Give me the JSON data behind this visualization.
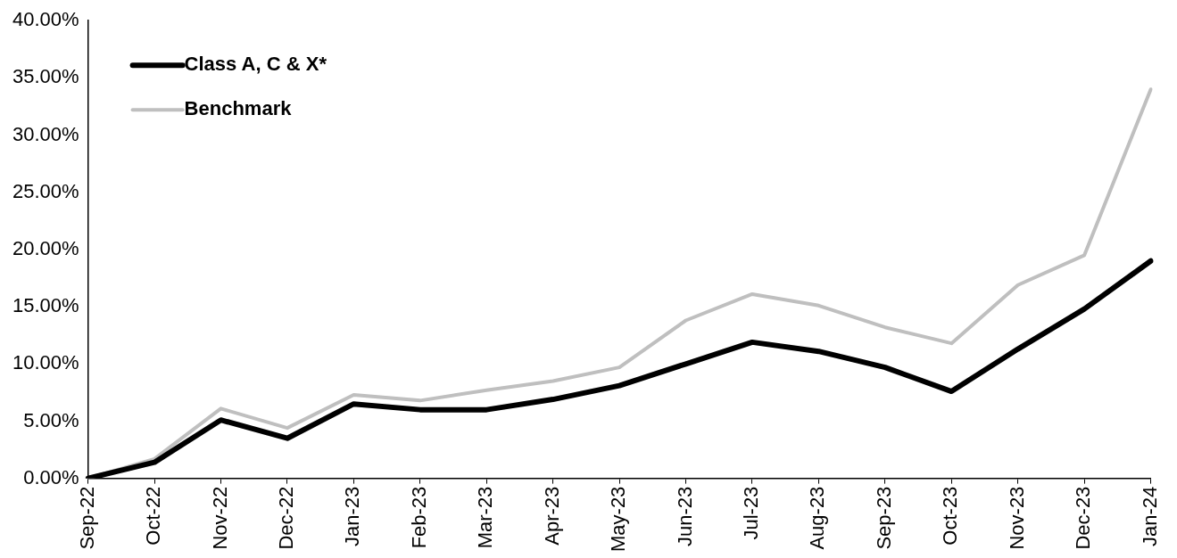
{
  "chart_data": {
    "type": "line",
    "categories": [
      "Sep-22",
      "Oct-22",
      "Nov-22",
      "Dec-22",
      "Jan-23",
      "Feb-23",
      "Mar-23",
      "Apr-23",
      "May-23",
      "Jun-23",
      "Jul-23",
      "Aug-23",
      "Sep-23",
      "Oct-23",
      "Nov-23",
      "Dec-23",
      "Jan-24"
    ],
    "series": [
      {
        "name": "Class A, C & X*",
        "color": "#000000",
        "values": [
          0,
          1.4,
          5.1,
          3.5,
          6.5,
          6.0,
          6.0,
          6.9,
          8.1,
          10.0,
          11.9,
          11.1,
          9.7,
          7.6,
          11.3,
          14.8,
          19.0
        ]
      },
      {
        "name": "Benchmark",
        "color": "#bfbfbf",
        "values": [
          0,
          1.7,
          6.1,
          4.4,
          7.3,
          6.8,
          7.7,
          8.5,
          9.7,
          13.8,
          16.1,
          15.1,
          13.2,
          11.8,
          16.9,
          19.5,
          34.0
        ]
      }
    ],
    "ylim": [
      0,
      40
    ],
    "yticks": [
      {
        "value": 0,
        "label": "0.00%"
      },
      {
        "value": 5,
        "label": "5.00%"
      },
      {
        "value": 10,
        "label": "10.00%"
      },
      {
        "value": 15,
        "label": "15.00%"
      },
      {
        "value": 20,
        "label": "20.00%"
      },
      {
        "value": 25,
        "label": "25.00%"
      },
      {
        "value": 30,
        "label": "30.00%"
      },
      {
        "value": 35,
        "label": "35.00%"
      },
      {
        "value": 40,
        "label": "40.00%"
      }
    ],
    "grid": false,
    "legend": "top left",
    "marker": "none",
    "line_style": "solid"
  }
}
